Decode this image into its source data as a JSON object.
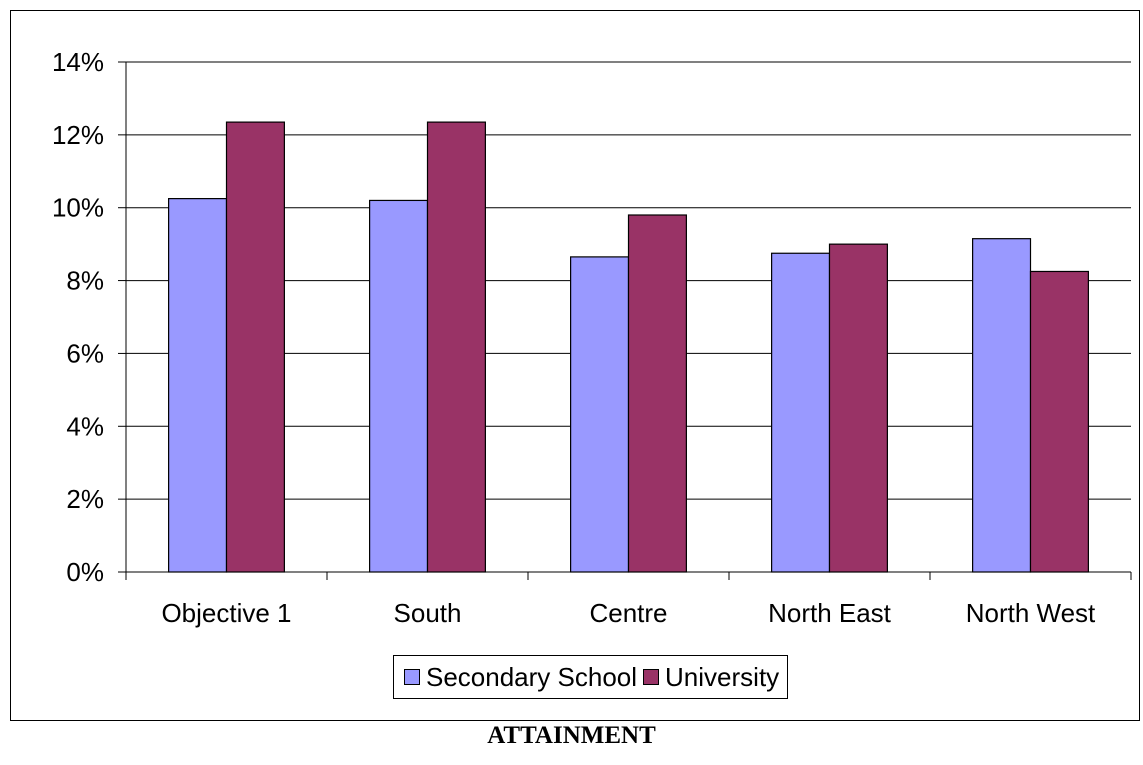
{
  "caption": "ATTAINMENT",
  "colors": {
    "secondary": "#9999FF",
    "university": "#993366"
  },
  "chart_data": {
    "type": "bar",
    "title": "",
    "xlabel": "",
    "ylabel": "",
    "categories": [
      "Objective 1",
      "South",
      "Centre",
      "North East",
      "North West"
    ],
    "series": [
      {
        "name": "Secondary School",
        "values": [
          10.25,
          10.2,
          8.65,
          8.75,
          9.15
        ]
      },
      {
        "name": "University",
        "values": [
          12.35,
          12.35,
          9.8,
          9.0,
          8.25
        ]
      }
    ],
    "ylim": [
      0,
      14
    ],
    "yticks": [
      "0%",
      "2%",
      "4%",
      "6%",
      "8%",
      "10%",
      "12%",
      "14%"
    ],
    "grid": true,
    "legend": "bottom"
  }
}
